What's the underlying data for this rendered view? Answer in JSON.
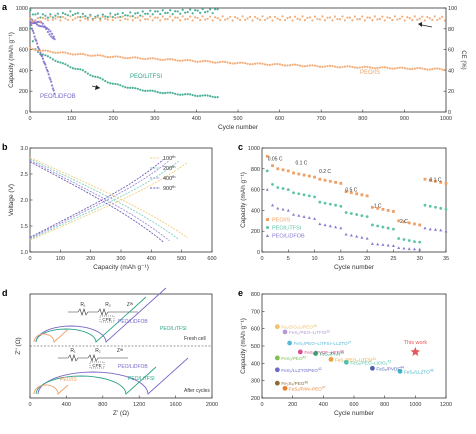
{
  "panel_letters": {
    "a": "a",
    "b": "b",
    "c": "c",
    "d": "d",
    "e": "e"
  },
  "chart_data": [
    {
      "panel": "a",
      "type": "scatter",
      "xlabel": "Cycle number",
      "ylabel": "Capacity (mAh g⁻¹)",
      "y2label": "CE (%)",
      "xlim": [
        0,
        1000
      ],
      "ylim": [
        0,
        1000
      ],
      "y2lim": [
        0,
        100
      ],
      "xticks": [
        "0",
        "100",
        "200",
        "300",
        "400",
        "500",
        "600",
        "700",
        "800",
        "900",
        "1000"
      ],
      "yticks": [
        "0",
        "200",
        "400",
        "600",
        "800",
        "1000"
      ],
      "y2ticks": [
        "0",
        "20",
        "40",
        "60",
        "80",
        "100"
      ],
      "series": [
        {
          "name": "PEO/LiTFSI",
          "color": "#2aa386",
          "kind": "capacity",
          "x": [
            1,
            10,
            25,
            50,
            75,
            100,
            125,
            150,
            175,
            200,
            250,
            300,
            350,
            400,
            440,
            455
          ],
          "y": [
            800,
            620,
            560,
            520,
            470,
            430,
            400,
            350,
            310,
            270,
            225,
            195,
            175,
            160,
            150,
            145
          ]
        },
        {
          "name": "PEO/LiTFSI",
          "color": "#2aa386",
          "kind": "ce",
          "x": [
            1,
            20,
            50,
            100,
            150,
            200,
            250,
            300,
            350,
            400,
            440,
            455
          ],
          "y": [
            96,
            93,
            92,
            95,
            91,
            93,
            94,
            96,
            96,
            97,
            97,
            99
          ]
        },
        {
          "name": "PEO/LiDFOB",
          "color": "#7b68c8",
          "kind": "capacity",
          "x": [
            1,
            10,
            20,
            30,
            40,
            50,
            60
          ],
          "y": [
            860,
            740,
            620,
            520,
            420,
            300,
            160
          ]
        },
        {
          "name": "PEO/LiDFOB",
          "color": "#7b68c8",
          "kind": "ce",
          "x": [
            1,
            10,
            20,
            30,
            40,
            50,
            60
          ],
          "y": [
            88,
            86,
            85,
            84,
            80,
            75,
            70
          ]
        },
        {
          "name": "PEO/IS",
          "color": "#f0a064",
          "kind": "capacity",
          "x": [
            1,
            25,
            50,
            100,
            150,
            200,
            300,
            400,
            500,
            600,
            700,
            800,
            900,
            1000
          ],
          "y": [
            610,
            590,
            580,
            560,
            545,
            530,
            510,
            490,
            470,
            455,
            440,
            430,
            420,
            410
          ]
        },
        {
          "name": "PEO/IS",
          "color": "#f0a064",
          "kind": "ce",
          "x": [
            1,
            50,
            100,
            200,
            300,
            400,
            500,
            600,
            700,
            800,
            900,
            1000
          ],
          "y": [
            88,
            90,
            90,
            90,
            90,
            90,
            90,
            90,
            90,
            90,
            90,
            90
          ]
        }
      ],
      "legend_labels": [
        "PEO/LiTFSI",
        "PEO/LiDFOB",
        "PEO/IS"
      ]
    },
    {
      "panel": "b",
      "type": "line",
      "xlabel": "Capacity (mAh g⁻¹)",
      "ylabel": "Voltage (V)",
      "xlim": [
        0,
        600
      ],
      "ylim": [
        0.8,
        3.0
      ],
      "xticks": [
        "0",
        "100",
        "200",
        "300",
        "400",
        "500",
        "600"
      ],
      "yticks": [
        "1.0",
        "1.5",
        "2.0",
        "2.5",
        "3.0"
      ],
      "series": [
        {
          "name": "100th",
          "sup": "th",
          "base": "100",
          "color": "#f5d07a",
          "cap": 520
        },
        {
          "name": "200th",
          "sup": "th",
          "base": "200",
          "color": "#7fd1c4",
          "cap": 490
        },
        {
          "name": "400th",
          "sup": "th",
          "base": "400",
          "color": "#9a8fd6",
          "cap": 460
        },
        {
          "name": "900th",
          "sup": "th",
          "base": "900",
          "color": "#6f5bb8",
          "cap": 440
        }
      ]
    },
    {
      "panel": "c",
      "type": "scatter",
      "xlabel": "Cycle number",
      "ylabel": "Capacity (mAh g⁻¹)",
      "xlim": [
        0,
        35
      ],
      "ylim": [
        0,
        1000
      ],
      "xticks": [
        "0",
        "5",
        "10",
        "15",
        "20",
        "25",
        "30",
        "35"
      ],
      "yticks": [
        "0",
        "200",
        "400",
        "600",
        "800",
        "1000"
      ],
      "rate_labels": [
        {
          "text": "0.05 C",
          "x": 2.5,
          "y": 880
        },
        {
          "text": "0.1 C",
          "x": 7.5,
          "y": 840
        },
        {
          "text": "0.2 C",
          "x": 12,
          "y": 760
        },
        {
          "text": "0.5 C",
          "x": 17,
          "y": 580
        },
        {
          "text": "1 C",
          "x": 22,
          "y": 430
        },
        {
          "text": "2 C",
          "x": 27,
          "y": 280
        },
        {
          "text": "0.1 C",
          "x": 33,
          "y": 680
        }
      ],
      "series": [
        {
          "name": "PEO/IS",
          "color": "#f0a064",
          "marker": "square",
          "y": [
            920,
            830,
            800,
            790,
            780,
            760,
            750,
            740,
            730,
            720,
            700,
            690,
            680,
            670,
            660,
            580,
            570,
            560,
            550,
            540,
            430,
            420,
            410,
            400,
            390,
            300,
            290,
            280,
            270,
            260,
            700,
            690,
            680,
            670,
            660
          ]
        },
        {
          "name": "PEO/LiTFSI",
          "color": "#5cc3a8",
          "marker": "circle",
          "y": [
            780,
            650,
            620,
            610,
            600,
            570,
            560,
            550,
            540,
            530,
            480,
            470,
            460,
            450,
            440,
            380,
            370,
            360,
            350,
            340,
            260,
            250,
            240,
            230,
            220,
            130,
            120,
            110,
            100,
            95,
            450,
            440,
            430,
            420,
            410
          ]
        },
        {
          "name": "PEO/LiDFOB",
          "color": "#8a78cf",
          "marker": "triangle",
          "y": [
            600,
            450,
            420,
            410,
            400,
            360,
            350,
            340,
            330,
            320,
            270,
            260,
            250,
            240,
            230,
            170,
            160,
            150,
            140,
            130,
            80,
            75,
            70,
            65,
            60,
            40,
            35,
            30,
            28,
            25,
            230,
            220,
            215,
            210,
            200
          ]
        }
      ]
    },
    {
      "panel": "d",
      "type": "line",
      "xlabel": "Z' (Ω)",
      "ylabel": "Z'' (Ω)",
      "xticks": [
        "0",
        "400",
        "800",
        "1200",
        "1600",
        "2000"
      ],
      "top_label": "Fresh cell",
      "bottom_label": "After cycles",
      "top_circuit": {
        "r1": "R₁",
        "r2": "R₂",
        "cpe": "CPE",
        "zw": "Zᵂ"
      },
      "bottom_circuit": {
        "r1": "R₁",
        "r2": "R₂",
        "cpe": "CPE",
        "zw": "Zᵂ"
      },
      "series": [
        {
          "name": "PEO/LiDFOB",
          "panel_part": "top",
          "color": "#7b68c8"
        },
        {
          "name": "PEO/LiTFSI",
          "panel_part": "top",
          "color": "#2aa386"
        },
        {
          "name": "PEO/IS",
          "panel_part": "top",
          "color": "#f0a064"
        },
        {
          "name": "PEO/LiDFOB",
          "panel_part": "bottom",
          "color": "#7b68c8"
        },
        {
          "name": "PEO/LiTFSI",
          "panel_part": "bottom",
          "color": "#2aa386"
        },
        {
          "name": "PEO/IS",
          "panel_part": "bottom",
          "color": "#f0a064"
        }
      ],
      "labels": [
        {
          "text": "PEO/LiDFOB",
          "part": "top",
          "color": "#7b68c8"
        },
        {
          "text": "PEO/LiTFSI",
          "part": "top",
          "color": "#2aa386"
        },
        {
          "text": "PEO/LiDFOB",
          "part": "bottom",
          "color": "#7b68c8"
        },
        {
          "text": "PEO/LiTFSI",
          "part": "bottom",
          "color": "#2aa386"
        },
        {
          "text": "PEO/IS",
          "part": "bottom",
          "color": "#f0a064"
        }
      ]
    },
    {
      "panel": "e",
      "type": "scatter",
      "xlabel": "Cycle number",
      "ylabel": "Capacity (mAh g⁻¹)",
      "xlim": [
        0,
        1200
      ],
      "ylim": [
        100,
        800
      ],
      "xticks": [
        "0",
        "200",
        "400",
        "600",
        "800",
        "1000",
        "1200"
      ],
      "yticks": [
        "200",
        "300",
        "400",
        "500",
        "600",
        "700",
        "800"
      ],
      "points": [
        {
          "label": "Fe₂(SO₄)₃/PEO",
          "ref": "35",
          "x": 100,
          "y": 580,
          "color": "#f5c06a"
        },
        {
          "label": "FeS₂/PEO–LiTFSI",
          "ref": "36",
          "x": 150,
          "y": 545,
          "color": "#b59ad6"
        },
        {
          "label": "FeS₂/PEO–LiTFSI–LLZTO",
          "ref": "37",
          "x": 180,
          "y": 470,
          "color": "#5ab8d8"
        },
        {
          "label": "FeS₂/PVDF–HFP",
          "ref": "38",
          "x": 250,
          "y": 410,
          "color": "#d85090"
        },
        {
          "label": "FeS₂/PAN",
          "ref": "39",
          "x": 350,
          "y": 400,
          "color": "#3aa070"
        },
        {
          "label": "FeS₂/PEO",
          "ref": "40",
          "x": 100,
          "y": 370,
          "color": "#7bc050"
        },
        {
          "label": "FeS₂/PEO–LiTFSI",
          "ref": "41",
          "x": 450,
          "y": 360,
          "color": "#e8a040"
        },
        {
          "label": "FeS₂/LLZTO/PEO",
          "ref": "42",
          "x": 100,
          "y": 290,
          "color": "#6d6bd0"
        },
        {
          "label": "FeS₂/PEO–LiClO₄",
          "ref": "43",
          "x": 550,
          "y": 340,
          "color": "#4fc3a8"
        },
        {
          "label": "FeS₂/PVDF",
          "ref": "44",
          "x": 720,
          "y": 300,
          "color": "#4a5fb0"
        },
        {
          "label": "FeS₂/LLZTO",
          "ref": "45",
          "x": 900,
          "y": 280,
          "color": "#3bb0c8"
        },
        {
          "label": "Fe₂S₃/PEO",
          "ref": "46",
          "x": 100,
          "y": 200,
          "color": "#8a6a30"
        },
        {
          "label": "FeS₂/PAN–PEO",
          "ref": "47",
          "x": 150,
          "y": 165,
          "color": "#e87f2f"
        }
      ],
      "this_work": {
        "label": "This work",
        "x": 1000,
        "y": 410,
        "color": "#e35757"
      }
    }
  ]
}
